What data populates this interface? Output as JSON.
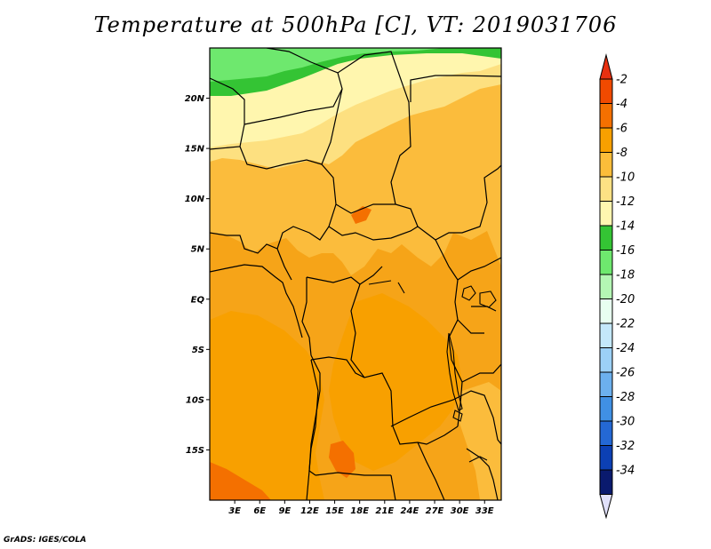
{
  "title": "Temperature at 500hPa [C], VT: 2019031706",
  "credit": "GrADS: IGES/COLA",
  "map": {
    "lat_range": [
      -20,
      25
    ],
    "lon_range": [
      0,
      35
    ],
    "lat_ticks": [
      {
        "lat": 20,
        "label": "20N"
      },
      {
        "lat": 15,
        "label": "15N"
      },
      {
        "lat": 10,
        "label": "10N"
      },
      {
        "lat": 5,
        "label": "5N"
      },
      {
        "lat": 0,
        "label": "EQ"
      },
      {
        "lat": -5,
        "label": "5S"
      },
      {
        "lat": -10,
        "label": "10S"
      },
      {
        "lat": -15,
        "label": "15S"
      }
    ],
    "lon_ticks": [
      {
        "lon": 3,
        "label": "3E"
      },
      {
        "lon": 6,
        "label": "6E"
      },
      {
        "lon": 9,
        "label": "9E"
      },
      {
        "lon": 12,
        "label": "12E"
      },
      {
        "lon": 15,
        "label": "15E"
      },
      {
        "lon": 18,
        "label": "18E"
      },
      {
        "lon": 21,
        "label": "21E"
      },
      {
        "lon": 24,
        "label": "24E"
      },
      {
        "lon": 27,
        "label": "27E"
      },
      {
        "lon": 30,
        "label": "30E"
      },
      {
        "lon": 33,
        "label": "33E"
      }
    ]
  },
  "colorbar": {
    "labels": [
      "-2",
      "-4",
      "-6",
      "-8",
      "-10",
      "-12",
      "-14",
      "-16",
      "-18",
      "-20",
      "-22",
      "-24",
      "-26",
      "-28",
      "-30",
      "-32",
      "-34"
    ],
    "colors": [
      "#f04a00",
      "#f47000",
      "#f8a000",
      "#fbbd3a",
      "#fde184",
      "#fff6b0",
      "#34c434",
      "#6ee86e",
      "#b4f6b4",
      "#e8fff0",
      "#c4e8fa",
      "#9cd0f6",
      "#6cb0ee",
      "#4090e4",
      "#2468d4",
      "#0c40b4",
      "#0a1a6e"
    ],
    "over_color": "#e83010",
    "under_color": "#e0e0fa"
  }
}
